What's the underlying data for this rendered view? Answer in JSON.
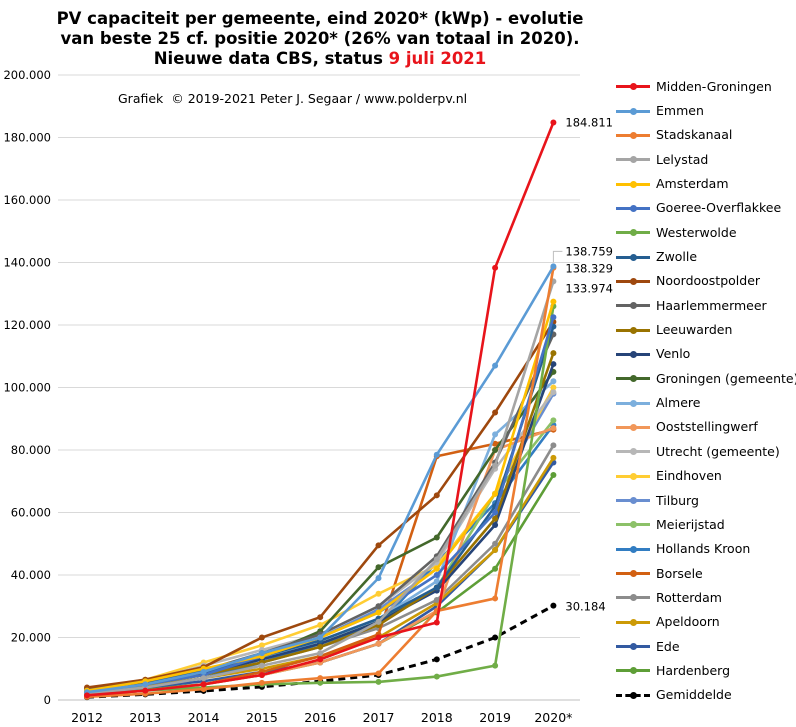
{
  "title": {
    "line1": "PV capaciteit per gemeente, eind 2020* (kWp) - evolutie",
    "line2": "van beste 25 cf. positie 2020* (26% van totaal in 2020).",
    "line3_prefix": "Nieuwe data CBS, status ",
    "line3_date": "9 juli 2021"
  },
  "credit": "Grafiek  © 2019-2021 Peter J. Segaar / www.polderpv.nl",
  "chart_data": {
    "type": "line",
    "x": [
      "2012",
      "2013",
      "2014",
      "2015",
      "2016",
      "2017",
      "2018",
      "2019",
      "2020*"
    ],
    "ylim": [
      0,
      200000
    ],
    "yticks": [
      "0",
      "20.000",
      "40.000",
      "60.000",
      "80.000",
      "100.000",
      "120.000",
      "140.000",
      "160.000",
      "180.000",
      "200.000"
    ],
    "ytick_values": [
      0,
      20000,
      40000,
      60000,
      80000,
      100000,
      120000,
      140000,
      160000,
      180000,
      200000
    ],
    "grid": "horizontal",
    "legend_position": "right",
    "series": [
      {
        "name": "Midden-Groningen",
        "color": "#e8141b",
        "values": [
          1500,
          3000,
          5000,
          8000,
          13000,
          20000,
          24800,
          138300,
          184811
        ]
      },
      {
        "name": "Emmen",
        "color": "#5b9bd5",
        "values": [
          2500,
          5000,
          9000,
          15000,
          20000,
          39000,
          78500,
          107000,
          138759
        ]
      },
      {
        "name": "Stadskanaal",
        "color": "#ed7d31",
        "values": [
          1000,
          2000,
          3500,
          5500,
          7000,
          8500,
          28500,
          32500,
          138329
        ]
      },
      {
        "name": "Lelystad",
        "color": "#a5a5a5",
        "values": [
          2000,
          4000,
          7000,
          11000,
          15000,
          25000,
          45000,
          75000,
          133974
        ]
      },
      {
        "name": "Amsterdam",
        "color": "#ffc000",
        "values": [
          3000,
          6000,
          10000,
          14000,
          20000,
          28000,
          42000,
          66000,
          127500
        ]
      },
      {
        "name": "Goeree-Overflakkee",
        "color": "#4472c4",
        "values": [
          2500,
          5000,
          8000,
          14000,
          20000,
          28000,
          40000,
          60000,
          122500
        ]
      },
      {
        "name": "Westerwolde",
        "color": "#70ad47",
        "values": [
          1500,
          3000,
          4000,
          5000,
          5500,
          5800,
          7500,
          11000,
          126000
        ]
      },
      {
        "name": "Zwolle",
        "color": "#255e91",
        "values": [
          3000,
          6000,
          9000,
          14000,
          19000,
          26000,
          36000,
          62000,
          119500
        ]
      },
      {
        "name": "Noordoostpolder",
        "color": "#9e480e",
        "values": [
          4000,
          6500,
          10500,
          20000,
          26500,
          49500,
          65500,
          92000,
          121000
        ]
      },
      {
        "name": "Haarlemmermeer",
        "color": "#636363",
        "values": [
          3500,
          6000,
          9500,
          15000,
          21000,
          30000,
          46000,
          76000,
          117000
        ]
      },
      {
        "name": "Leeuwarden",
        "color": "#997300",
        "values": [
          2500,
          5000,
          8000,
          12000,
          17000,
          24000,
          36000,
          58000,
          111000
        ]
      },
      {
        "name": "Venlo",
        "color": "#264478",
        "values": [
          3000,
          5500,
          8500,
          13000,
          18000,
          25000,
          35000,
          56000,
          107500
        ]
      },
      {
        "name": "Groningen (gemeente)",
        "color": "#43682b",
        "values": [
          3500,
          6000,
          9000,
          14000,
          22000,
          42500,
          52000,
          80000,
          105000
        ]
      },
      {
        "name": "Almere",
        "color": "#7cafdd",
        "values": [
          2500,
          5000,
          8000,
          13000,
          19000,
          26000,
          38000,
          85000,
          102000
        ]
      },
      {
        "name": "Ooststellingwerf",
        "color": "#f1975a",
        "values": [
          1500,
          3000,
          5000,
          8000,
          12000,
          18000,
          28500,
          80000,
          87000
        ]
      },
      {
        "name": "Utrecht (gemeente)",
        "color": "#b7b7b7",
        "values": [
          3000,
          6000,
          11000,
          16000,
          21000,
          30000,
          44000,
          74000,
          98500
        ]
      },
      {
        "name": "Eindhoven",
        "color": "#ffcd33",
        "values": [
          3500,
          6500,
          12000,
          17500,
          24000,
          34000,
          43000,
          66000,
          100000
        ]
      },
      {
        "name": "Tilburg",
        "color": "#698ed0",
        "values": [
          3000,
          5500,
          9000,
          14000,
          20000,
          29000,
          42000,
          66000,
          98000
        ]
      },
      {
        "name": "Meierijstad",
        "color": "#8cc168",
        "values": [
          3000,
          5500,
          9000,
          13500,
          18000,
          25000,
          36000,
          66000,
          89500
        ]
      },
      {
        "name": "Hollands Kroon",
        "color": "#327dc2",
        "values": [
          2000,
          4000,
          7000,
          12000,
          18000,
          24000,
          44000,
          63000,
          88000
        ]
      },
      {
        "name": "Borsele",
        "color": "#d26012",
        "values": [
          1500,
          3000,
          5000,
          9000,
          14000,
          21000,
          78000,
          82000,
          86500
        ]
      },
      {
        "name": "Rotterdam",
        "color": "#8c8c8c",
        "values": [
          2500,
          5000,
          8000,
          12000,
          17000,
          23000,
          32000,
          50000,
          81500
        ]
      },
      {
        "name": "Apeldoorn",
        "color": "#cc9a06",
        "values": [
          2500,
          4500,
          7000,
          10000,
          14000,
          20000,
          31000,
          48000,
          77500
        ]
      },
      {
        "name": "Ede",
        "color": "#335aa1",
        "values": [
          2000,
          4000,
          6000,
          9000,
          12000,
          18000,
          30000,
          48000,
          76000
        ]
      },
      {
        "name": "Hardenberg",
        "color": "#5e9e37",
        "values": [
          2000,
          3500,
          5000,
          8000,
          12000,
          18000,
          28000,
          42000,
          72000
        ]
      },
      {
        "name": "Gemiddelde",
        "color": "#000000",
        "dashed": true,
        "values": [
          900,
          1800,
          2900,
          4200,
          6000,
          8000,
          13000,
          20000,
          30184
        ]
      }
    ],
    "annotations": [
      {
        "series": "Midden-Groningen",
        "text": "184.811"
      },
      {
        "series": "Emmen",
        "text": "138.759"
      },
      {
        "series": "Stadskanaal",
        "text": "138.329"
      },
      {
        "series": "Lelystad",
        "text": "133.974"
      },
      {
        "series": "Gemiddelde",
        "text": "30.184"
      }
    ]
  }
}
